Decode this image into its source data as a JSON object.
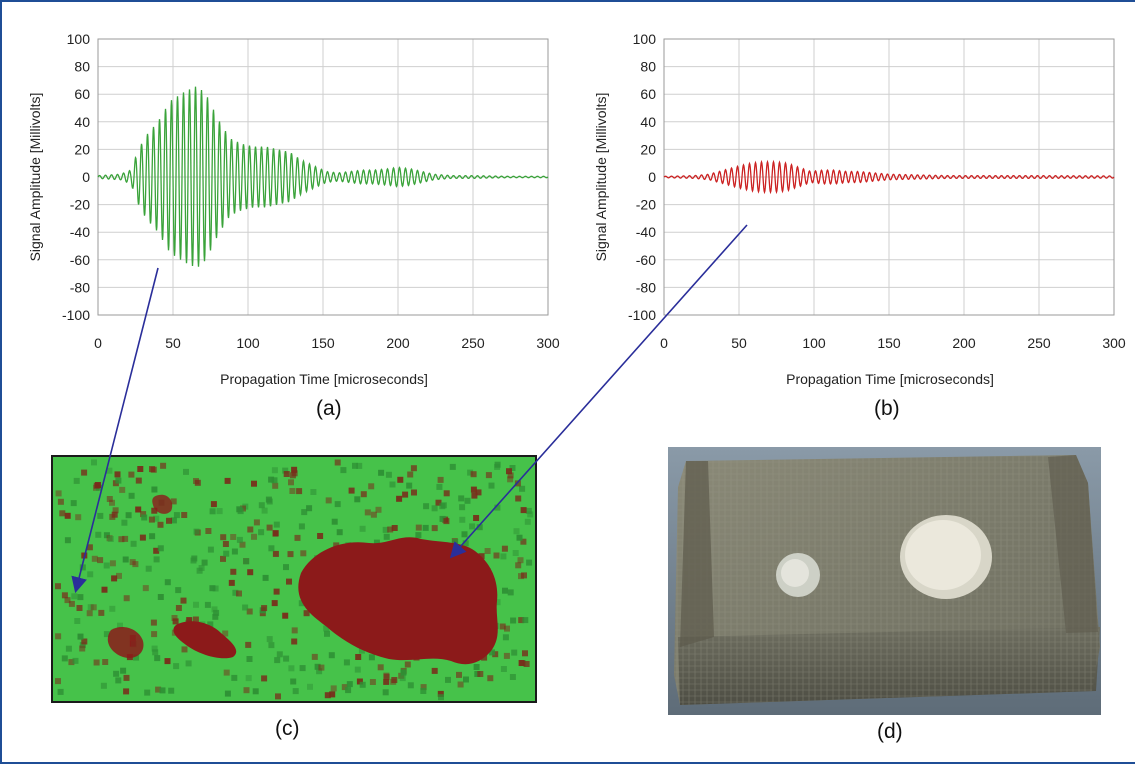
{
  "chart_data": [
    {
      "type": "line",
      "panel": "(a)",
      "xlabel": "Propagation Time [microseconds]",
      "ylabel": "Signal Amplitude [Millivolts]",
      "xlim": [
        0,
        300
      ],
      "ylim": [
        -100,
        100
      ],
      "xticks": [
        "0",
        "50",
        "100",
        "150",
        "200",
        "250",
        "300"
      ],
      "yticks": [
        "100",
        "80",
        "60",
        "40",
        "20",
        "0",
        "-20",
        "-40",
        "-60",
        "-80",
        "-100"
      ],
      "grid": true,
      "series_color": "#3aa33a",
      "envelope": [
        [
          0,
          1
        ],
        [
          15,
          2
        ],
        [
          22,
          5
        ],
        [
          27,
          20
        ],
        [
          32,
          30
        ],
        [
          40,
          40
        ],
        [
          48,
          55
        ],
        [
          58,
          62
        ],
        [
          66,
          66
        ],
        [
          72,
          60
        ],
        [
          80,
          42
        ],
        [
          88,
          28
        ],
        [
          96,
          24
        ],
        [
          104,
          22
        ],
        [
          112,
          22
        ],
        [
          120,
          20
        ],
        [
          128,
          18
        ],
        [
          136,
          12
        ],
        [
          144,
          8
        ],
        [
          152,
          4
        ],
        [
          160,
          3
        ],
        [
          168,
          4
        ],
        [
          176,
          5
        ],
        [
          184,
          5
        ],
        [
          194,
          6
        ],
        [
          200,
          7
        ],
        [
          208,
          6
        ],
        [
          216,
          4
        ],
        [
          224,
          2
        ],
        [
          236,
          1
        ],
        [
          250,
          1
        ],
        [
          275,
          0.5
        ],
        [
          300,
          0.5
        ]
      ],
      "oscillation_period_us": 4
    },
    {
      "type": "line",
      "panel": "(b)",
      "xlabel": "Propagation Time [microseconds]",
      "ylabel": "Signal Amplitude [Millivolts]",
      "xlim": [
        0,
        300
      ],
      "ylim": [
        -100,
        100
      ],
      "xticks": [
        "0",
        "50",
        "100",
        "150",
        "200",
        "250",
        "300"
      ],
      "yticks": [
        "100",
        "80",
        "60",
        "40",
        "20",
        "0",
        "-20",
        "-40",
        "-60",
        "-80",
        "-100"
      ],
      "grid": true,
      "series_color": "#cc2222",
      "envelope": [
        [
          0,
          0.5
        ],
        [
          20,
          1
        ],
        [
          30,
          2
        ],
        [
          40,
          5
        ],
        [
          50,
          8
        ],
        [
          58,
          10
        ],
        [
          66,
          11
        ],
        [
          74,
          11
        ],
        [
          82,
          10
        ],
        [
          90,
          7
        ],
        [
          98,
          4
        ],
        [
          106,
          5
        ],
        [
          114,
          5
        ],
        [
          122,
          4
        ],
        [
          130,
          4
        ],
        [
          140,
          3
        ],
        [
          150,
          2
        ],
        [
          170,
          1.5
        ],
        [
          190,
          1
        ],
        [
          220,
          1
        ],
        [
          250,
          1
        ],
        [
          300,
          0.8
        ]
      ],
      "oscillation_period_us": 4
    }
  ],
  "captions": {
    "a": "(a)",
    "b": "(b)",
    "c": "(c)",
    "d": "(d)"
  },
  "colors": {
    "frame": "#1f4e96",
    "arrow": "#2a2e9a",
    "map_green": "#46c24a",
    "map_red": "#8c1a1a",
    "grid": "#cfcfcf"
  }
}
